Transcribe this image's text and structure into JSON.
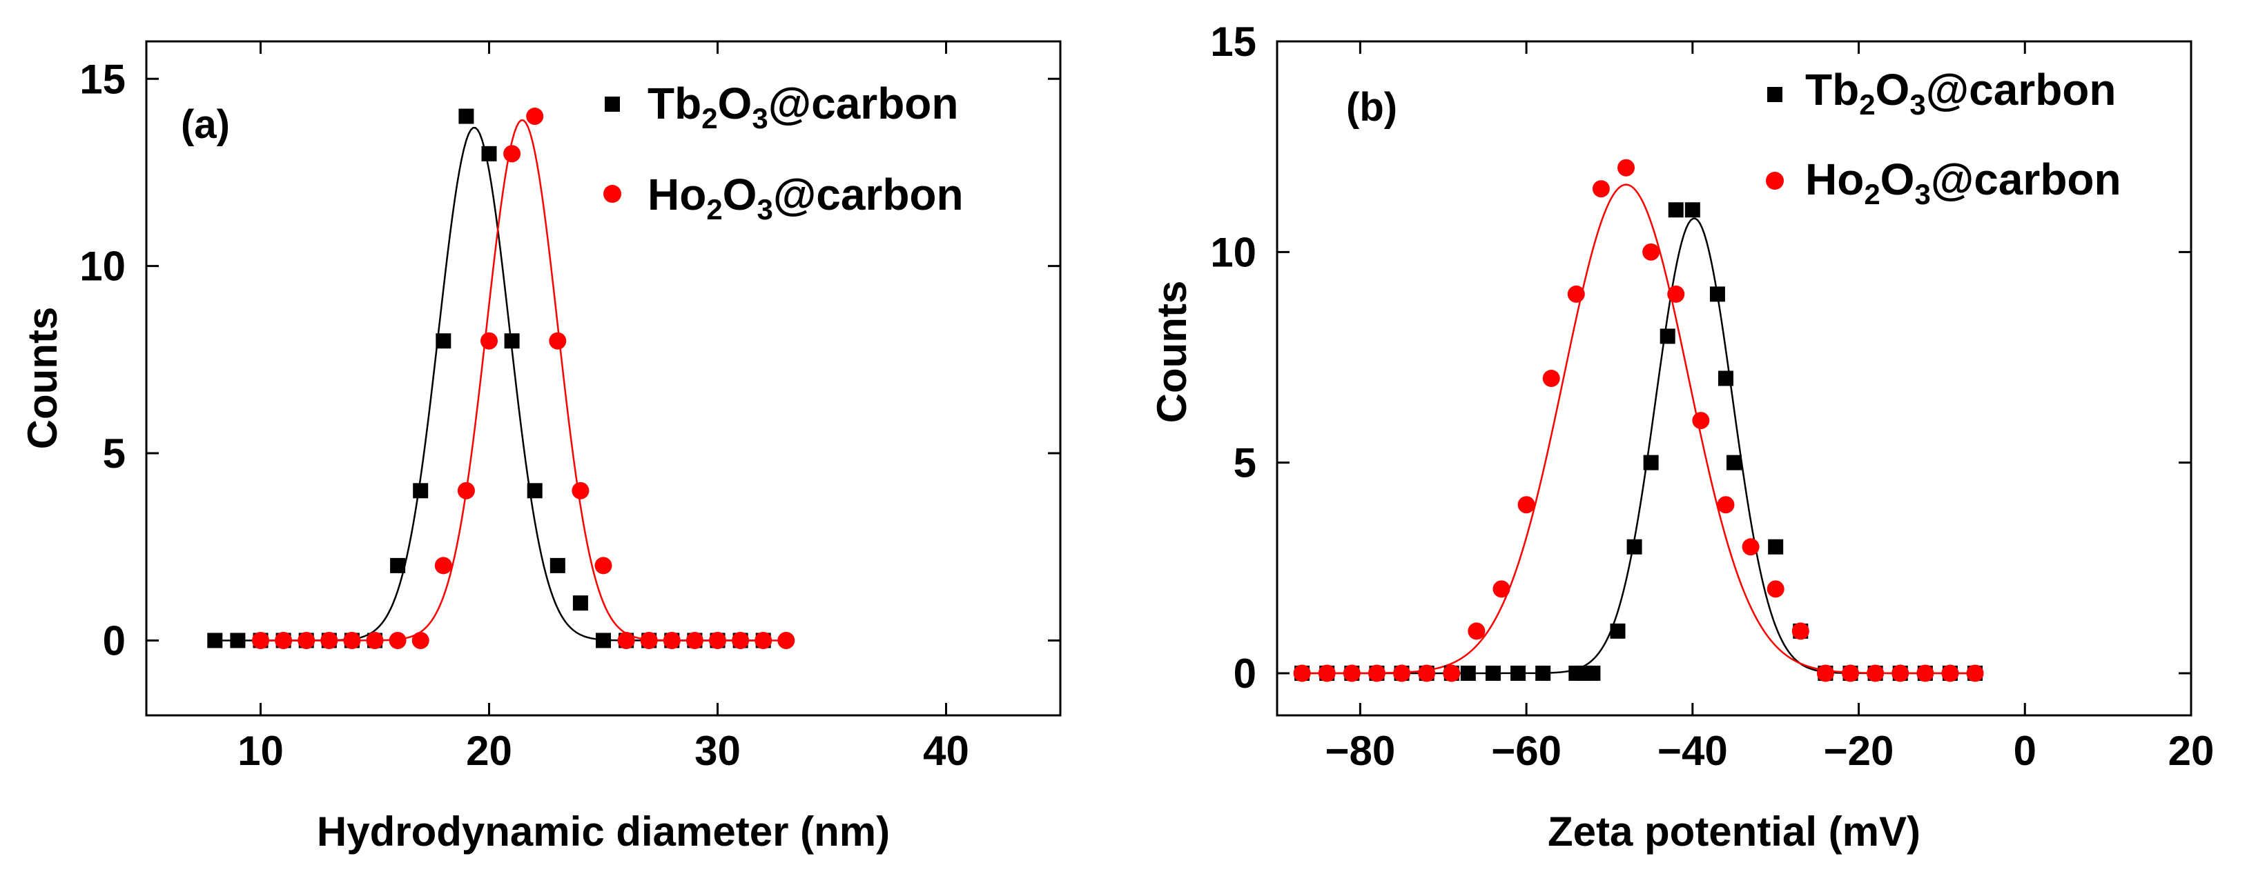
{
  "colors": {
    "tb": "#000000",
    "ho": "#ff0000",
    "axis": "#000000"
  },
  "chart_data": [
    {
      "type": "scatter",
      "panel_label": "(a)",
      "xlabel": "Hydrodynamic diameter (nm)",
      "ylabel": "Counts",
      "xlim": [
        5,
        45
      ],
      "ylim": [
        -2,
        16
      ],
      "xticks": [
        10,
        20,
        30,
        40
      ],
      "yticks": [
        0,
        5,
        10,
        15
      ],
      "legend_position": "top-right",
      "series": [
        {
          "name": "Tb₂O₃@carbon",
          "name_base": "Tb",
          "name_sub1": "2",
          "name_mid": "O",
          "name_sub2": "3",
          "name_tail": "@carbon",
          "marker": "square",
          "x": [
            8,
            9,
            10,
            11,
            12,
            13,
            14,
            15,
            16,
            17,
            18,
            19,
            20,
            21,
            22,
            23,
            24,
            25,
            26,
            27,
            28,
            29,
            30,
            31,
            32
          ],
          "y": [
            0,
            0,
            0,
            0,
            0,
            0,
            0,
            0,
            2,
            4,
            8,
            14,
            13,
            8,
            4,
            2,
            1,
            0,
            0,
            0,
            0,
            0,
            0,
            0,
            0
          ],
          "fit": {
            "model": "gaussian",
            "amplitude": 13.7,
            "center": 19.35,
            "sigma": 1.55
          }
        },
        {
          "name": "Ho₂O₃@carbon",
          "name_base": "Ho",
          "name_sub1": "2",
          "name_mid": "O",
          "name_sub2": "3",
          "name_tail": "@carbon",
          "marker": "circle",
          "x": [
            10,
            11,
            12,
            13,
            14,
            15,
            16,
            17,
            18,
            19,
            20,
            21,
            22,
            23,
            24,
            25,
            26,
            27,
            28,
            29,
            30,
            31,
            32,
            33
          ],
          "y": [
            0,
            0,
            0,
            0,
            0,
            0,
            0,
            0,
            2,
            4,
            8,
            13,
            14,
            8,
            4,
            2,
            0,
            0,
            0,
            0,
            0,
            0,
            0,
            0
          ],
          "fit": {
            "model": "gaussian",
            "amplitude": 13.9,
            "center": 21.45,
            "sigma": 1.55
          }
        }
      ]
    },
    {
      "type": "scatter",
      "panel_label": "(b)",
      "xlabel": "Zeta potential (mV)",
      "ylabel": "Counts",
      "xlim": [
        -90,
        20
      ],
      "ylim": [
        -1,
        15
      ],
      "xticks": [
        -80,
        -60,
        -40,
        -20,
        0,
        20
      ],
      "xtick_labels": [
        "−80",
        "−60",
        "−40",
        "−20",
        "0",
        "20"
      ],
      "yticks": [
        0,
        5,
        10,
        15
      ],
      "legend_position": "top-right",
      "series": [
        {
          "name": "Tb₂O₃@carbon",
          "name_base": "Tb",
          "name_sub1": "2",
          "name_mid": "O",
          "name_sub2": "3",
          "name_tail": "@carbon",
          "marker": "square",
          "x": [
            -87,
            -84,
            -81,
            -78,
            -75,
            -72,
            -69,
            -67,
            -64,
            -61,
            -58,
            -54,
            -53,
            -52,
            -49,
            -47,
            -45,
            -43,
            -42,
            -40,
            -37,
            -36,
            -35,
            -30,
            -27,
            -24,
            -21,
            -18,
            -15,
            -12,
            -9,
            -6
          ],
          "y": [
            0,
            0,
            0,
            0,
            0,
            0,
            0,
            0,
            0,
            0,
            0,
            0,
            0,
            0,
            1,
            3,
            5,
            8,
            11,
            11,
            9,
            7,
            5,
            3,
            1,
            0,
            0,
            0,
            0,
            0,
            0,
            0
          ],
          "fit": {
            "model": "gaussian",
            "amplitude": 10.8,
            "center": -39.8,
            "sigma": 4.6
          }
        },
        {
          "name": "Ho₂O₃@carbon",
          "name_base": "Ho",
          "name_sub1": "2",
          "name_mid": "O",
          "name_sub2": "3",
          "name_tail": "@carbon",
          "marker": "circle",
          "x": [
            -87,
            -84,
            -81,
            -78,
            -75,
            -72,
            -69,
            -66,
            -63,
            -60,
            -57,
            -54,
            -51,
            -48,
            -45,
            -42,
            -39,
            -36,
            -33,
            -30,
            -27,
            -24,
            -21,
            -18,
            -15,
            -12,
            -9,
            -6
          ],
          "y": [
            0,
            0,
            0,
            0,
            0,
            0,
            0,
            1,
            2,
            4,
            7,
            9,
            11.5,
            12,
            10,
            9,
            6,
            4,
            3,
            2,
            1,
            0,
            0,
            0,
            0,
            0,
            0,
            0
          ],
          "fit": {
            "model": "gaussian",
            "amplitude": 11.6,
            "center": -48.0,
            "sigma": 7.5
          }
        }
      ]
    }
  ]
}
